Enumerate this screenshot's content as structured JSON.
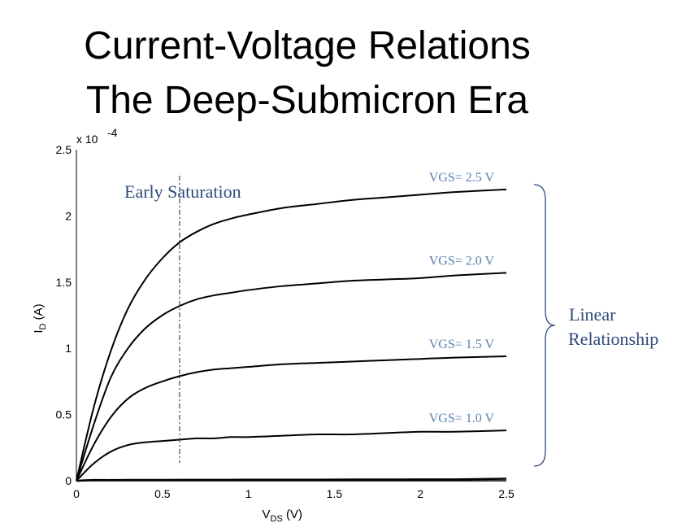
{
  "slide": {
    "title_line1": "Current-Voltage Relations",
    "title_line2": "The Deep-Submicron Era"
  },
  "chart_data": {
    "type": "line",
    "xlabel_main": "V",
    "xlabel_sub": "DS",
    "xlabel_unit": " (V)",
    "ylabel_main": "I",
    "ylabel_sub": "D",
    "ylabel_unit": " (A)",
    "y_scale_prefix": "x 10",
    "y_scale_exp": "-4",
    "xlim": [
      0,
      2.5
    ],
    "ylim": [
      0,
      2.5
    ],
    "x_ticks": [
      "0",
      "0.5",
      "1",
      "1.5",
      "2",
      "2.5"
    ],
    "y_ticks": [
      "0",
      "0.5",
      "1",
      "1.5",
      "2",
      "2.5"
    ],
    "x": [
      0,
      0.1,
      0.2,
      0.3,
      0.4,
      0.5,
      0.6,
      0.7,
      0.8,
      0.9,
      1.0,
      1.2,
      1.4,
      1.6,
      1.8,
      2.0,
      2.2,
      2.5
    ],
    "series": [
      {
        "name": "VGS= 2.5 V",
        "values": [
          0,
          0.55,
          0.98,
          1.3,
          1.52,
          1.68,
          1.8,
          1.88,
          1.94,
          1.98,
          2.01,
          2.06,
          2.09,
          2.12,
          2.14,
          2.16,
          2.18,
          2.2
        ]
      },
      {
        "name": "VGS= 2.0 V",
        "values": [
          0,
          0.42,
          0.78,
          1.0,
          1.15,
          1.25,
          1.32,
          1.37,
          1.4,
          1.42,
          1.44,
          1.47,
          1.49,
          1.51,
          1.52,
          1.53,
          1.55,
          1.57
        ]
      },
      {
        "name": "VGS= 1.5 V",
        "values": [
          0,
          0.27,
          0.48,
          0.62,
          0.7,
          0.75,
          0.79,
          0.82,
          0.84,
          0.85,
          0.86,
          0.88,
          0.89,
          0.9,
          0.91,
          0.92,
          0.93,
          0.94
        ]
      },
      {
        "name": "VGS= 1.0 V",
        "values": [
          0,
          0.13,
          0.22,
          0.27,
          0.29,
          0.3,
          0.31,
          0.32,
          0.32,
          0.33,
          0.33,
          0.34,
          0.35,
          0.35,
          0.36,
          0.37,
          0.37,
          0.38
        ]
      },
      {
        "name": "",
        "values": [
          0,
          0.005,
          0.005,
          0.006,
          0.006,
          0.006,
          0.007,
          0.007,
          0.007,
          0.007,
          0.008,
          0.008,
          0.008,
          0.009,
          0.009,
          0.01,
          0.01,
          0.015
        ]
      }
    ],
    "annotations": {
      "early_saturation": "Early Saturation",
      "early_saturation_x": 0.6,
      "linear_line1": "Linear",
      "linear_line2": "Relationship"
    },
    "colors": {
      "curve": "#000000",
      "annotation": "#2e4a78",
      "series_label": "#5b7fb0"
    },
    "grid": false
  }
}
